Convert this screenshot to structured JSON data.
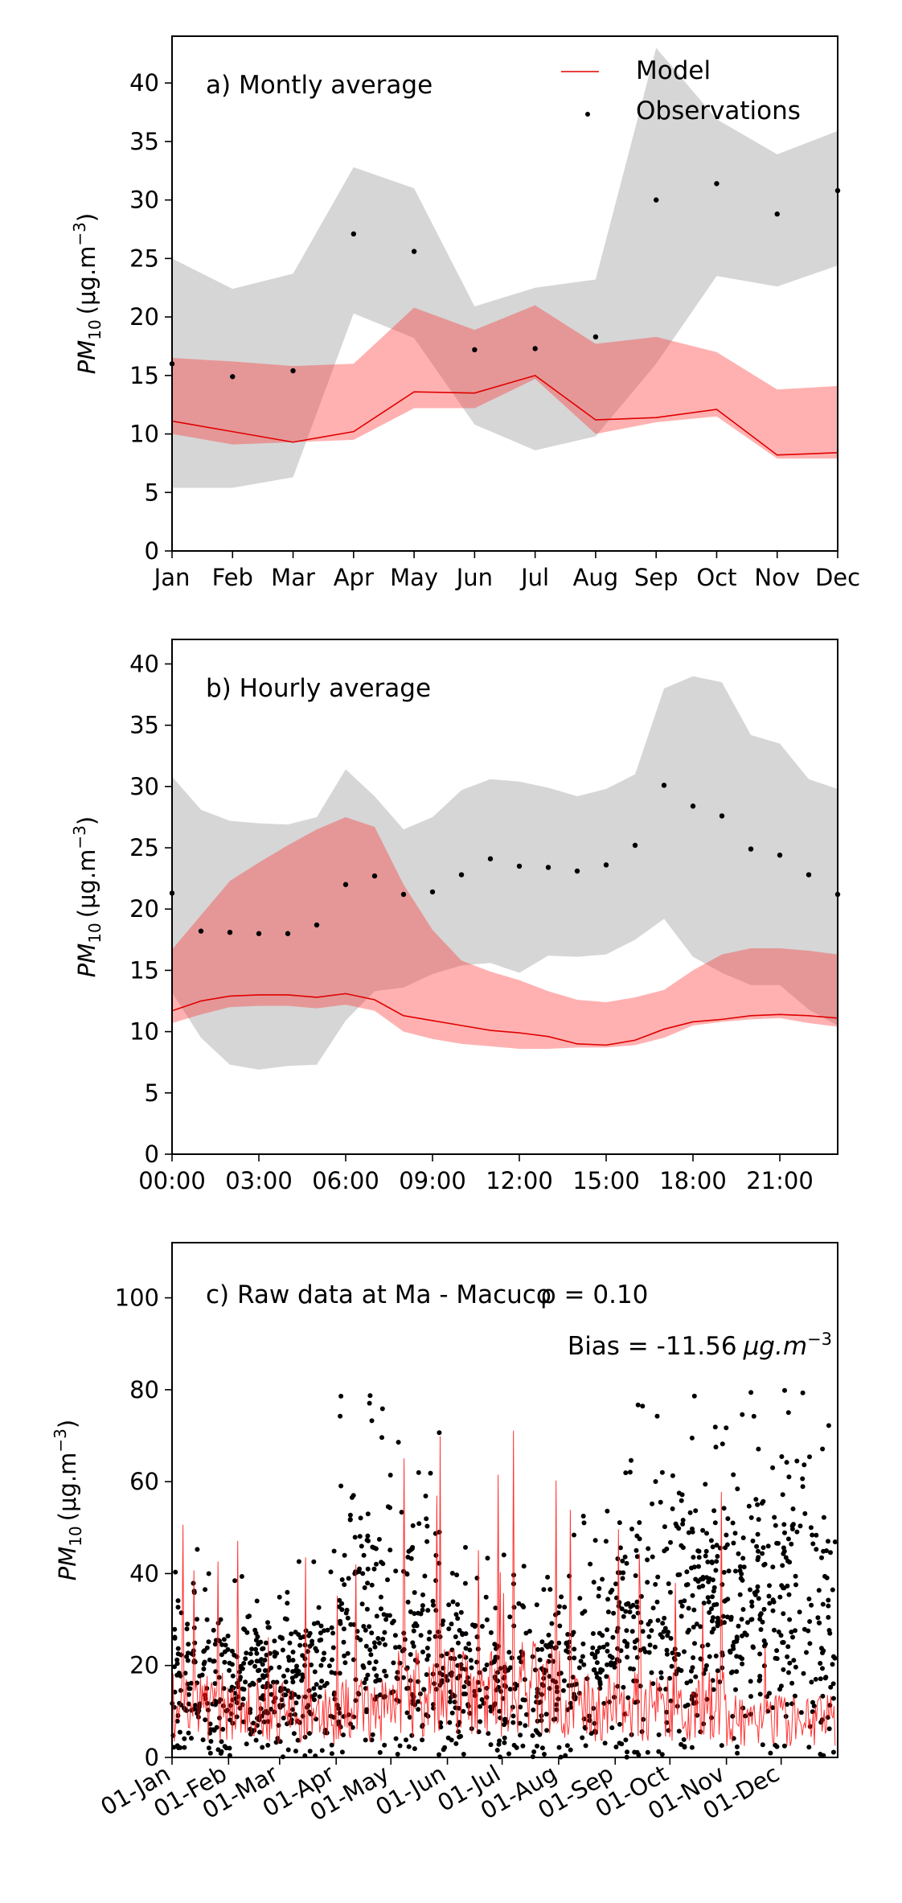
{
  "chart_data": [
    {
      "type": "line",
      "panel_label": "a) Montly average",
      "ylabel_main": "PM",
      "ylabel_sub": "10",
      "ylabel_unit": "(μg.m",
      "ylabel_exp": "−3",
      "ylabel_close": ")",
      "ylim": [
        0,
        44
      ],
      "yticks": [
        0,
        5,
        10,
        15,
        20,
        25,
        30,
        35,
        40
      ],
      "categories": [
        "Jan",
        "Feb",
        "Mar",
        "Apr",
        "May",
        "Jun",
        "Jul",
        "Aug",
        "Sep",
        "Oct",
        "Nov",
        "Dec"
      ],
      "legend": {
        "placement": "top-right",
        "model_label": "Model",
        "obs_label": "Observations"
      },
      "grid": false,
      "series": [
        {
          "name": "Model",
          "kind": "line",
          "color": "#e00000",
          "values": [
            11.1,
            10.2,
            9.3,
            10.2,
            13.6,
            13.5,
            15.0,
            11.2,
            11.4,
            12.1,
            8.2,
            8.4
          ]
        },
        {
          "name": "Model range",
          "kind": "band",
          "color": "#ff9999",
          "lower": [
            10.0,
            9.1,
            9.3,
            9.5,
            12.2,
            12.2,
            14.7,
            10.0,
            11.0,
            11.5,
            7.9,
            7.9
          ],
          "upper": [
            16.5,
            16.2,
            15.8,
            16.0,
            20.8,
            18.9,
            21.0,
            17.7,
            18.3,
            17.0,
            13.8,
            14.1
          ]
        },
        {
          "name": "Observations",
          "kind": "scatter",
          "color": "#000000",
          "values": [
            16.0,
            14.9,
            15.4,
            27.1,
            25.6,
            17.2,
            17.3,
            18.3,
            30.0,
            31.4,
            28.8,
            30.8
          ]
        },
        {
          "name": "Observations range",
          "kind": "band",
          "color": "#bdbdbd",
          "lower": [
            5.4,
            5.4,
            6.3,
            20.3,
            18.2,
            10.8,
            8.6,
            9.8,
            16.0,
            23.5,
            22.6,
            24.4
          ],
          "upper": [
            25.0,
            22.4,
            23.7,
            32.8,
            31.0,
            20.9,
            22.5,
            23.2,
            43.0,
            36.9,
            33.9,
            35.9
          ]
        }
      ]
    },
    {
      "type": "line",
      "panel_label": "b) Hourly average",
      "ylabel_main": "PM",
      "ylabel_sub": "10",
      "ylabel_unit": "(μg.m",
      "ylabel_exp": "−3",
      "ylabel_close": ")",
      "ylim": [
        0,
        42
      ],
      "yticks": [
        0,
        5,
        10,
        15,
        20,
        25,
        30,
        35,
        40
      ],
      "xlim": [
        0,
        23
      ],
      "x": [
        0,
        1,
        2,
        3,
        4,
        5,
        6,
        7,
        8,
        9,
        10,
        11,
        12,
        13,
        14,
        15,
        16,
        17,
        18,
        19,
        20,
        21,
        22,
        23
      ],
      "xticks": [
        {
          "at": 0,
          "label": "00:00"
        },
        {
          "at": 3,
          "label": "03:00"
        },
        {
          "at": 6,
          "label": "06:00"
        },
        {
          "at": 9,
          "label": "09:00"
        },
        {
          "at": 12,
          "label": "12:00"
        },
        {
          "at": 15,
          "label": "15:00"
        },
        {
          "at": 18,
          "label": "18:00"
        },
        {
          "at": 21,
          "label": "21:00"
        }
      ],
      "grid": false,
      "series": [
        {
          "name": "Model",
          "kind": "line",
          "color": "#e00000",
          "values": [
            11.7,
            12.5,
            12.9,
            13.0,
            13.0,
            12.8,
            13.1,
            12.6,
            11.3,
            10.9,
            10.5,
            10.1,
            9.9,
            9.6,
            9.0,
            8.9,
            9.3,
            10.2,
            10.8,
            11.0,
            11.3,
            11.4,
            11.3,
            11.1
          ]
        },
        {
          "name": "Model range",
          "kind": "band",
          "color": "#ff9999",
          "lower": [
            10.7,
            11.4,
            12.0,
            12.1,
            12.1,
            11.9,
            12.2,
            11.7,
            10.0,
            9.4,
            9.0,
            8.8,
            8.6,
            8.6,
            8.7,
            8.7,
            8.9,
            9.5,
            10.5,
            10.8,
            11.0,
            11.1,
            10.7,
            10.4
          ],
          "upper": [
            16.7,
            19.5,
            22.3,
            23.8,
            25.2,
            26.5,
            27.5,
            26.7,
            22.0,
            18.3,
            15.8,
            14.9,
            14.2,
            13.3,
            12.6,
            12.4,
            12.8,
            13.4,
            15.0,
            16.3,
            16.8,
            16.8,
            16.6,
            16.3
          ]
        },
        {
          "name": "Observations",
          "kind": "scatter",
          "color": "#000000",
          "values": [
            21.3,
            18.2,
            18.1,
            18.0,
            18.0,
            18.7,
            22.0,
            22.7,
            21.2,
            21.4,
            22.8,
            24.1,
            23.5,
            23.4,
            23.1,
            23.6,
            25.2,
            30.1,
            28.4,
            27.6,
            24.9,
            24.4,
            22.8,
            21.2
          ]
        },
        {
          "name": "Observations range",
          "kind": "band",
          "color": "#bdbdbd",
          "lower": [
            13.2,
            9.5,
            7.3,
            6.9,
            7.2,
            7.3,
            10.9,
            13.3,
            13.6,
            14.7,
            15.4,
            15.6,
            14.8,
            16.2,
            16.1,
            16.3,
            17.5,
            19.2,
            16.1,
            14.8,
            13.8,
            13.8,
            11.8,
            10.5
          ],
          "upper": [
            30.8,
            28.1,
            27.2,
            27.0,
            26.9,
            27.5,
            31.4,
            29.2,
            26.5,
            27.5,
            29.7,
            30.6,
            30.4,
            29.9,
            29.2,
            29.8,
            31.0,
            38.0,
            39.0,
            38.5,
            34.2,
            33.5,
            30.6,
            29.8
          ]
        }
      ]
    },
    {
      "type": "scatter",
      "panel_label": "c) Raw data at Ma - Macuco",
      "stats": {
        "rho": "ρ = 0.10",
        "bias_text": "Bias = -11.56",
        "bias_unit": "μg.m",
        "bias_exp": "−3"
      },
      "ylabel_main": "PM",
      "ylabel_sub": "10",
      "ylabel_unit": "(μg.m",
      "ylabel_exp": "−3",
      "ylabel_close": ")",
      "ylim": [
        0,
        112
      ],
      "yticks": [
        0,
        20,
        40,
        60,
        80,
        100
      ],
      "xlim_days": [
        0,
        365
      ],
      "xticks": [
        {
          "at": 0,
          "label": "01-Jan"
        },
        {
          "at": 31,
          "label": "01-Feb"
        },
        {
          "at": 59,
          "label": "01-Mar"
        },
        {
          "at": 90,
          "label": "01-Apr"
        },
        {
          "at": 120,
          "label": "01-May"
        },
        {
          "at": 151,
          "label": "01-Jun"
        },
        {
          "at": 181,
          "label": "01-Jul"
        },
        {
          "at": 212,
          "label": "01-Aug"
        },
        {
          "at": 243,
          "label": "01-Sep"
        },
        {
          "at": 273,
          "label": "01-Oct"
        },
        {
          "at": 304,
          "label": "01-Nov"
        },
        {
          "at": 334,
          "label": "01-Dec"
        }
      ],
      "grid": false,
      "series": [
        {
          "name": "Observations",
          "kind": "scatter-dense",
          "color": "#000000"
        },
        {
          "name": "Model",
          "kind": "line-dense",
          "color": "#e00000"
        }
      ]
    }
  ]
}
